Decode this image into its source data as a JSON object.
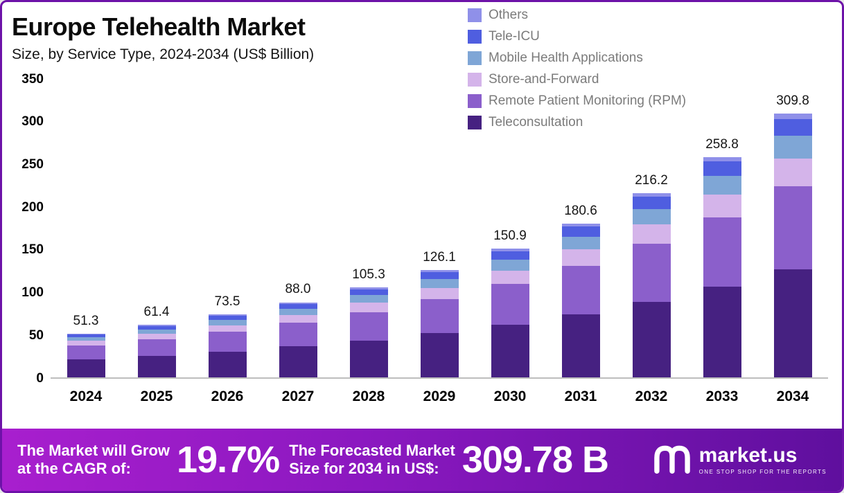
{
  "chart_data": {
    "type": "bar",
    "stacked": true,
    "title": "Europe Telehealth Market",
    "subtitle": "Size, by Service Type, 2024-2034 (US$ Billion)",
    "xlabel": "",
    "ylabel": "US$ Billion",
    "ylim": [
      0,
      350
    ],
    "yticks": [
      350,
      300,
      250,
      200,
      150,
      100,
      50,
      0
    ],
    "grid": false,
    "legend_position": "top-right",
    "categories": [
      "2024",
      "2025",
      "2026",
      "2027",
      "2028",
      "2029",
      "2030",
      "2031",
      "2032",
      "2033",
      "2034"
    ],
    "totals": [
      51.3,
      61.4,
      73.5,
      88.0,
      105.3,
      126.1,
      150.9,
      180.6,
      216.2,
      258.8,
      309.8
    ],
    "total_labels": [
      "51.3",
      "61.4",
      "73.5",
      "88.0",
      "105.3",
      "126.1",
      "150.9",
      "180.6",
      "216.2",
      "258.8",
      "309.8"
    ],
    "series": [
      {
        "name": "Teleconsultation",
        "color": "#462181",
        "values": [
          21.0,
          25.2,
          30.1,
          36.1,
          43.2,
          51.7,
          61.9,
          74.0,
          88.6,
          106.1,
          127.0
        ]
      },
      {
        "name": "Remote Patient Monitoring (RPM)",
        "color": "#8b5fcb",
        "values": [
          16.2,
          19.3,
          23.2,
          27.7,
          33.2,
          39.7,
          47.5,
          56.9,
          68.1,
          81.5,
          97.6
        ]
      },
      {
        "name": "Store-and-Forward",
        "color": "#d4b4ea",
        "values": [
          5.4,
          6.4,
          7.7,
          9.2,
          11.1,
          13.2,
          15.8,
          19.0,
          22.7,
          27.2,
          32.5
        ]
      },
      {
        "name": "Mobile Health Applications",
        "color": "#7fa6d6",
        "values": [
          4.4,
          5.2,
          6.2,
          7.5,
          9.0,
          10.7,
          12.8,
          15.4,
          18.4,
          22.0,
          26.3
        ]
      },
      {
        "name": "Tele-ICU",
        "color": "#4f5ee0",
        "values": [
          3.3,
          4.0,
          4.8,
          5.7,
          6.8,
          8.2,
          9.8,
          11.7,
          14.1,
          16.8,
          20.1
        ]
      },
      {
        "name": "Others",
        "color": "#8f90e9",
        "values": [
          1.0,
          1.2,
          1.5,
          1.8,
          2.1,
          2.5,
          3.0,
          3.6,
          4.3,
          5.2,
          6.2
        ]
      }
    ],
    "legend": [
      {
        "label": "Others",
        "color": "#8f90e9"
      },
      {
        "label": "Tele-ICU",
        "color": "#4f5ee0"
      },
      {
        "label": "Mobile Health Applications",
        "color": "#7fa6d6"
      },
      {
        "label": "Store-and-Forward",
        "color": "#d4b4ea"
      },
      {
        "label": "Remote Patient Monitoring (RPM)",
        "color": "#8b5fcb"
      },
      {
        "label": "Teleconsultation",
        "color": "#462181"
      }
    ]
  },
  "banner": {
    "cagr": {
      "line1": "The Market will Grow",
      "line2": "at the CAGR of:",
      "value": "19.7%"
    },
    "forecast": {
      "line1": "The Forecasted Market",
      "line2": "Size for 2034 in US$:",
      "value": "309.78 B"
    },
    "brand": {
      "name": "market.us",
      "tagline": "ONE STOP SHOP FOR THE REPORTS"
    }
  },
  "colors": {
    "banner_gradient_start": "#a81fce",
    "banner_gradient_end": "#5f0f9e",
    "frame": "#6d12a8"
  }
}
